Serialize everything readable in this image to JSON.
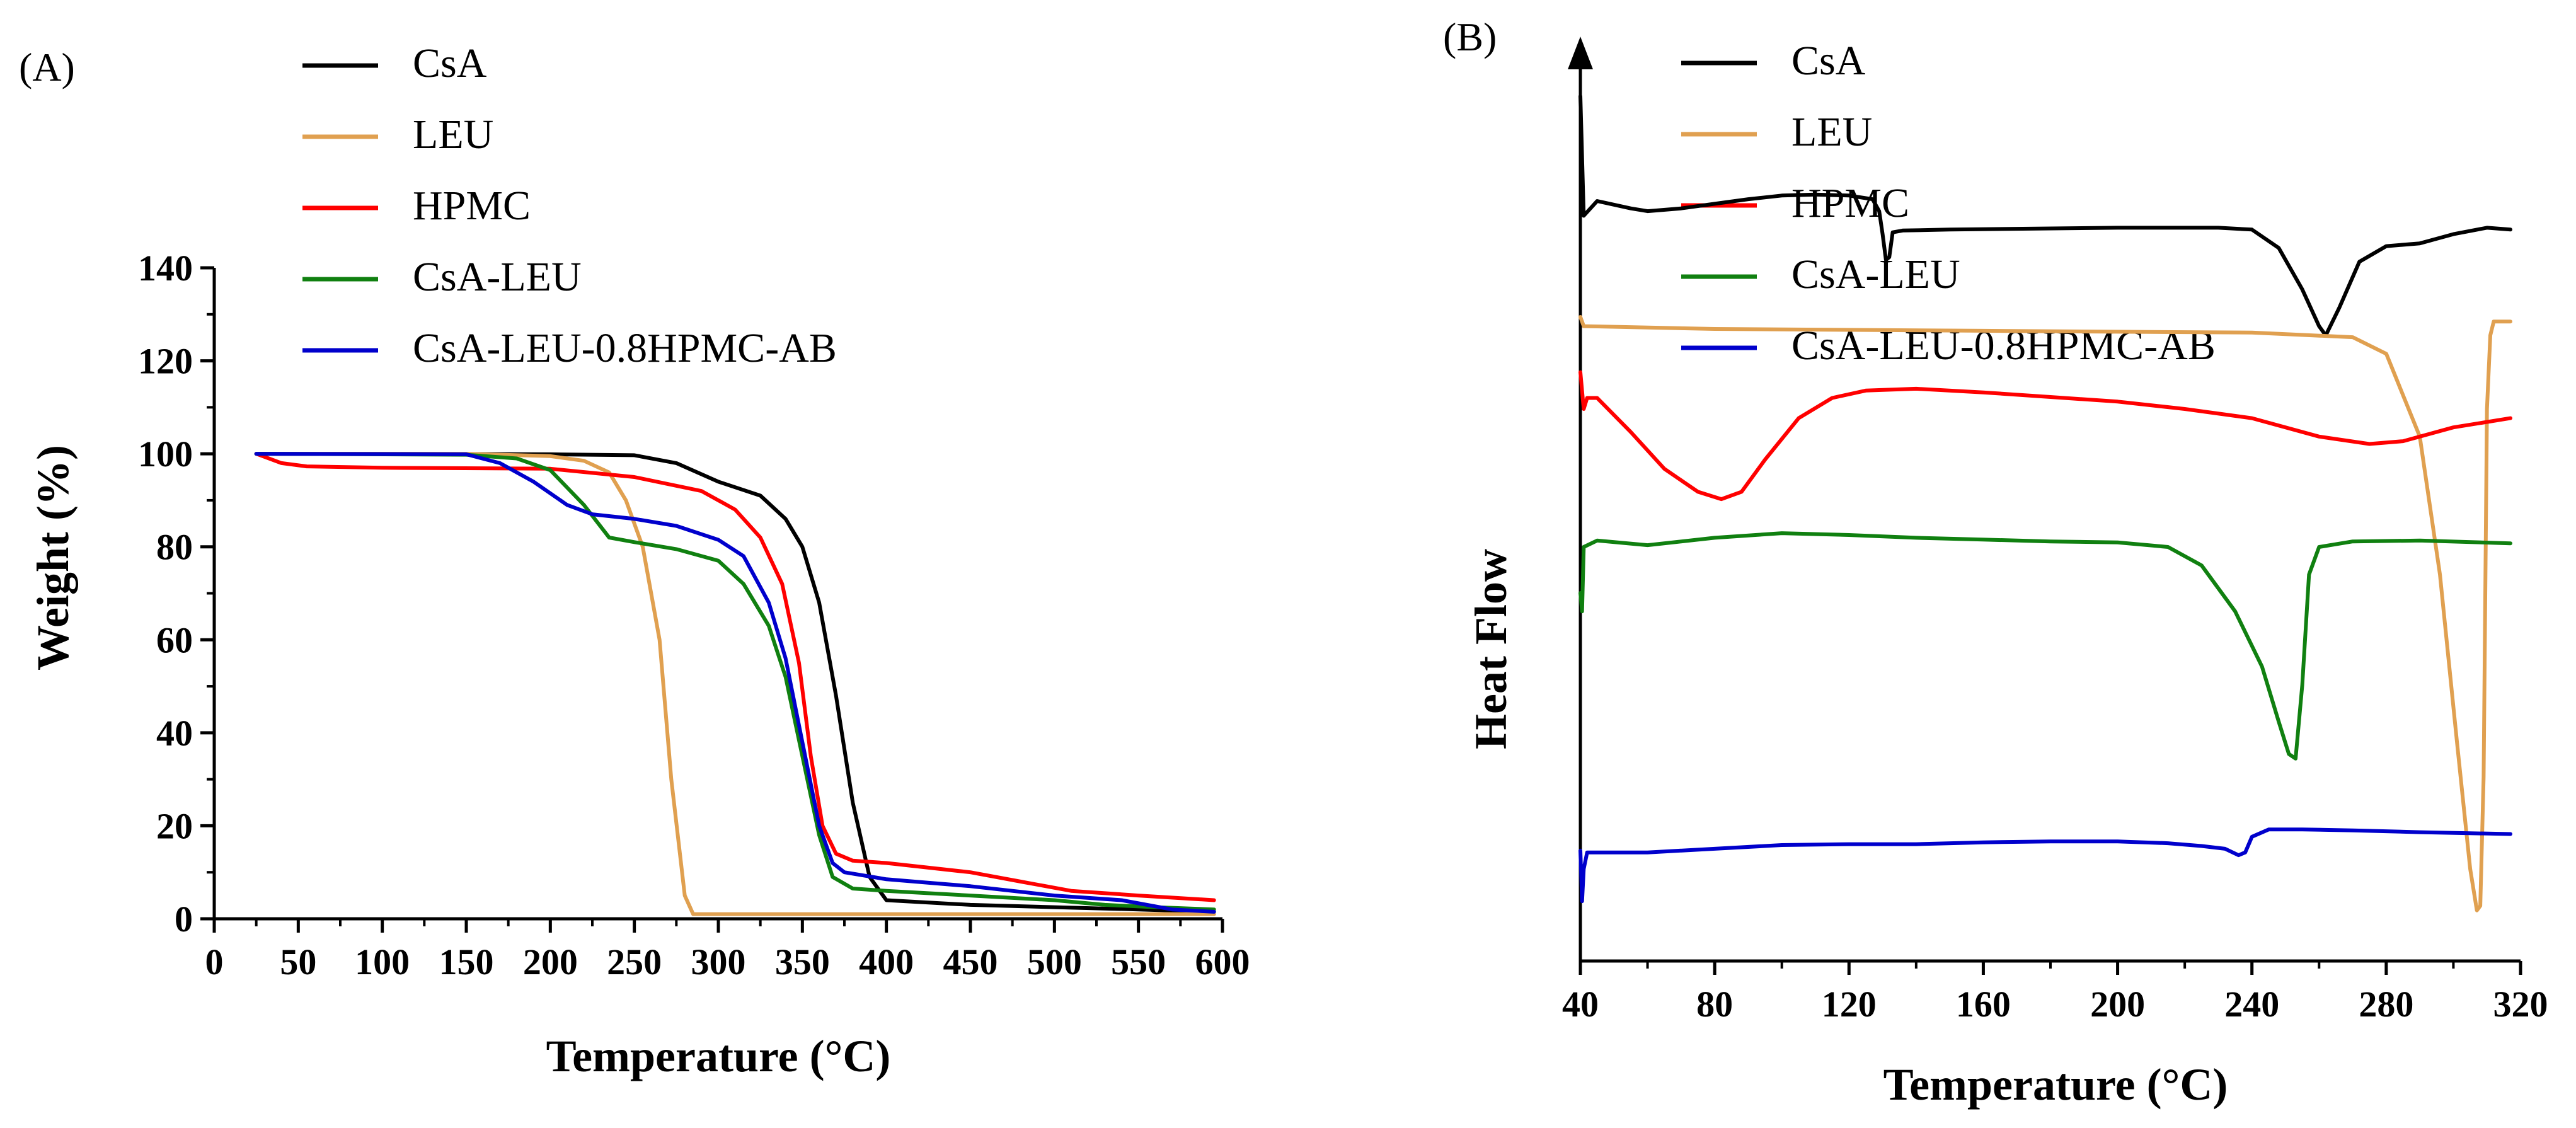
{
  "chart_data": [
    {
      "type": "line",
      "panel_label": "(A)",
      "xlabel": "Temperature (°C)",
      "ylabel": "Weight (%)",
      "xlim": [
        0,
        600
      ],
      "ylim": [
        0,
        140
      ],
      "xticks": [
        0,
        50,
        100,
        150,
        200,
        250,
        300,
        350,
        400,
        450,
        500,
        550,
        600
      ],
      "yticks": [
        0,
        20,
        40,
        60,
        80,
        100,
        120,
        140
      ],
      "grid": false,
      "legend_position": "top-left",
      "series": [
        {
          "name": "CsA",
          "color": "#000000",
          "points": [
            [
              25,
              100
            ],
            [
              100,
              100
            ],
            [
              200,
              99.9
            ],
            [
              250,
              99.7
            ],
            [
              275,
              98
            ],
            [
              300,
              94
            ],
            [
              325,
              91
            ],
            [
              340,
              86
            ],
            [
              350,
              80
            ],
            [
              360,
              68
            ],
            [
              370,
              48
            ],
            [
              380,
              25
            ],
            [
              390,
              9
            ],
            [
              400,
              4
            ],
            [
              450,
              3
            ],
            [
              500,
              2.5
            ],
            [
              550,
              2
            ],
            [
              595,
              1.5
            ]
          ]
        },
        {
          "name": "LEU",
          "color": "#E0A050",
          "points": [
            [
              25,
              100
            ],
            [
              150,
              100
            ],
            [
              200,
              99.5
            ],
            [
              220,
              98.5
            ],
            [
              235,
              96
            ],
            [
              245,
              90
            ],
            [
              255,
              80
            ],
            [
              265,
              60
            ],
            [
              272,
              30
            ],
            [
              280,
              5
            ],
            [
              285,
              1
            ],
            [
              300,
              1
            ],
            [
              400,
              1
            ],
            [
              500,
              1
            ],
            [
              595,
              1
            ]
          ]
        },
        {
          "name": "HPMC",
          "color": "#FF0000",
          "points": [
            [
              25,
              100
            ],
            [
              40,
              98
            ],
            [
              55,
              97.3
            ],
            [
              100,
              97
            ],
            [
              200,
              96.8
            ],
            [
              250,
              95
            ],
            [
              290,
              92
            ],
            [
              310,
              88
            ],
            [
              325,
              82
            ],
            [
              338,
              72
            ],
            [
              348,
              55
            ],
            [
              355,
              35
            ],
            [
              362,
              20
            ],
            [
              370,
              14
            ],
            [
              380,
              12.5
            ],
            [
              400,
              12
            ],
            [
              450,
              10
            ],
            [
              480,
              8
            ],
            [
              510,
              6
            ],
            [
              550,
              5
            ],
            [
              595,
              4
            ]
          ]
        },
        {
          "name": "CsA-LEU",
          "color": "#108010",
          "points": [
            [
              25,
              100
            ],
            [
              150,
              99.8
            ],
            [
              180,
              99
            ],
            [
              200,
              96.5
            ],
            [
              220,
              89
            ],
            [
              235,
              82
            ],
            [
              250,
              81
            ],
            [
              275,
              79.5
            ],
            [
              300,
              77
            ],
            [
              315,
              72
            ],
            [
              330,
              63
            ],
            [
              340,
              52
            ],
            [
              350,
              35
            ],
            [
              360,
              18
            ],
            [
              368,
              9
            ],
            [
              380,
              6.5
            ],
            [
              400,
              6
            ],
            [
              450,
              5
            ],
            [
              500,
              4
            ],
            [
              530,
              3
            ],
            [
              560,
              2.5
            ],
            [
              595,
              2
            ]
          ]
        },
        {
          "name": "CsA-LEU-0.8HPMC-AB",
          "color": "#0000CC",
          "points": [
            [
              25,
              100
            ],
            [
              150,
              99.9
            ],
            [
              170,
              98
            ],
            [
              190,
              94
            ],
            [
              210,
              89
            ],
            [
              225,
              87
            ],
            [
              250,
              86
            ],
            [
              275,
              84.5
            ],
            [
              300,
              81.5
            ],
            [
              315,
              78
            ],
            [
              330,
              68
            ],
            [
              340,
              56
            ],
            [
              350,
              38
            ],
            [
              360,
              20
            ],
            [
              368,
              12
            ],
            [
              375,
              10
            ],
            [
              400,
              8.5
            ],
            [
              450,
              7
            ],
            [
              500,
              5
            ],
            [
              540,
              4
            ],
            [
              570,
              2
            ],
            [
              595,
              1.5
            ]
          ]
        }
      ]
    },
    {
      "type": "line",
      "panel_label": "(B)",
      "xlabel": "Temperature (°C)",
      "ylabel": "Heat Flow",
      "xlim": [
        40,
        320
      ],
      "ylim": [
        0,
        1
      ],
      "xticks": [
        40,
        80,
        120,
        160,
        200,
        240,
        280,
        320
      ],
      "yticks": [],
      "y_axis_arrow": true,
      "grid": false,
      "legend_position": "top-left",
      "series": [
        {
          "name": "CsA",
          "color": "#000000",
          "points": [
            [
              40,
              0.94
            ],
            [
              41,
              0.81
            ],
            [
              45,
              0.826
            ],
            [
              55,
              0.818
            ],
            [
              60,
              0.815
            ],
            [
              70,
              0.818
            ],
            [
              80,
              0.823
            ],
            [
              90,
              0.828
            ],
            [
              100,
              0.832
            ],
            [
              110,
              0.833
            ],
            [
              120,
              0.832
            ],
            [
              127,
              0.828
            ],
            [
              129,
              0.815
            ],
            [
              130,
              0.79
            ],
            [
              131,
              0.762
            ],
            [
              132,
              0.765
            ],
            [
              133,
              0.792
            ],
            [
              136,
              0.794
            ],
            [
              150,
              0.795
            ],
            [
              200,
              0.797
            ],
            [
              230,
              0.797
            ],
            [
              240,
              0.795
            ],
            [
              248,
              0.775
            ],
            [
              255,
              0.73
            ],
            [
              260,
              0.69
            ],
            [
              262,
              0.68
            ],
            [
              266,
              0.71
            ],
            [
              272,
              0.76
            ],
            [
              280,
              0.777
            ],
            [
              290,
              0.78
            ],
            [
              300,
              0.79
            ],
            [
              310,
              0.797
            ],
            [
              317,
              0.795
            ]
          ]
        },
        {
          "name": "LEU",
          "color": "#E0A050",
          "points": [
            [
              40,
              0.7
            ],
            [
              41,
              0.69
            ],
            [
              80,
              0.687
            ],
            [
              160,
              0.685
            ],
            [
              240,
              0.683
            ],
            [
              270,
              0.678
            ],
            [
              280,
              0.66
            ],
            [
              290,
              0.57
            ],
            [
              296,
              0.42
            ],
            [
              301,
              0.24
            ],
            [
              305,
              0.1
            ],
            [
              307,
              0.055
            ],
            [
              308,
              0.06
            ],
            [
              309,
              0.2
            ],
            [
              310,
              0.6
            ],
            [
              311,
              0.68
            ],
            [
              312,
              0.695
            ],
            [
              317,
              0.695
            ]
          ]
        },
        {
          "name": "HPMC",
          "color": "#FF0000",
          "points": [
            [
              40,
              0.64
            ],
            [
              41,
              0.6
            ],
            [
              42,
              0.612
            ],
            [
              45,
              0.612
            ],
            [
              55,
              0.575
            ],
            [
              65,
              0.535
            ],
            [
              75,
              0.51
            ],
            [
              82,
              0.502
            ],
            [
              88,
              0.51
            ],
            [
              95,
              0.545
            ],
            [
              105,
              0.59
            ],
            [
              115,
              0.612
            ],
            [
              125,
              0.62
            ],
            [
              140,
              0.622
            ],
            [
              160,
              0.618
            ],
            [
              180,
              0.613
            ],
            [
              200,
              0.608
            ],
            [
              220,
              0.6
            ],
            [
              240,
              0.59
            ],
            [
              260,
              0.57
            ],
            [
              275,
              0.562
            ],
            [
              285,
              0.565
            ],
            [
              300,
              0.58
            ],
            [
              317,
              0.59
            ]
          ]
        },
        {
          "name": "CsA-LEU",
          "color": "#108010",
          "points": [
            [
              40,
              0.4
            ],
            [
              40.5,
              0.38
            ],
            [
              41,
              0.45
            ],
            [
              45,
              0.457
            ],
            [
              60,
              0.452
            ],
            [
              80,
              0.46
            ],
            [
              100,
              0.465
            ],
            [
              120,
              0.463
            ],
            [
              140,
              0.46
            ],
            [
              160,
              0.458
            ],
            [
              180,
              0.456
            ],
            [
              200,
              0.455
            ],
            [
              215,
              0.45
            ],
            [
              225,
              0.43
            ],
            [
              235,
              0.38
            ],
            [
              243,
              0.32
            ],
            [
              248,
              0.26
            ],
            [
              251,
              0.225
            ],
            [
              253,
              0.22
            ],
            [
              255,
              0.3
            ],
            [
              257,
              0.42
            ],
            [
              260,
              0.45
            ],
            [
              270,
              0.456
            ],
            [
              290,
              0.457
            ],
            [
              317,
              0.454
            ]
          ]
        },
        {
          "name": "CsA-LEU-0.8HPMC-AB",
          "color": "#0000CC",
          "points": [
            [
              40,
              0.12
            ],
            [
              40.5,
              0.065
            ],
            [
              41,
              0.1
            ],
            [
              42,
              0.118
            ],
            [
              60,
              0.118
            ],
            [
              80,
              0.122
            ],
            [
              100,
              0.126
            ],
            [
              120,
              0.127
            ],
            [
              140,
              0.127
            ],
            [
              160,
              0.129
            ],
            [
              180,
              0.13
            ],
            [
              200,
              0.13
            ],
            [
              215,
              0.128
            ],
            [
              225,
              0.125
            ],
            [
              232,
              0.122
            ],
            [
              236,
              0.115
            ],
            [
              238,
              0.118
            ],
            [
              240,
              0.135
            ],
            [
              245,
              0.143
            ],
            [
              255,
              0.143
            ],
            [
              270,
              0.142
            ],
            [
              290,
              0.14
            ],
            [
              317,
              0.138
            ]
          ]
        }
      ]
    }
  ]
}
